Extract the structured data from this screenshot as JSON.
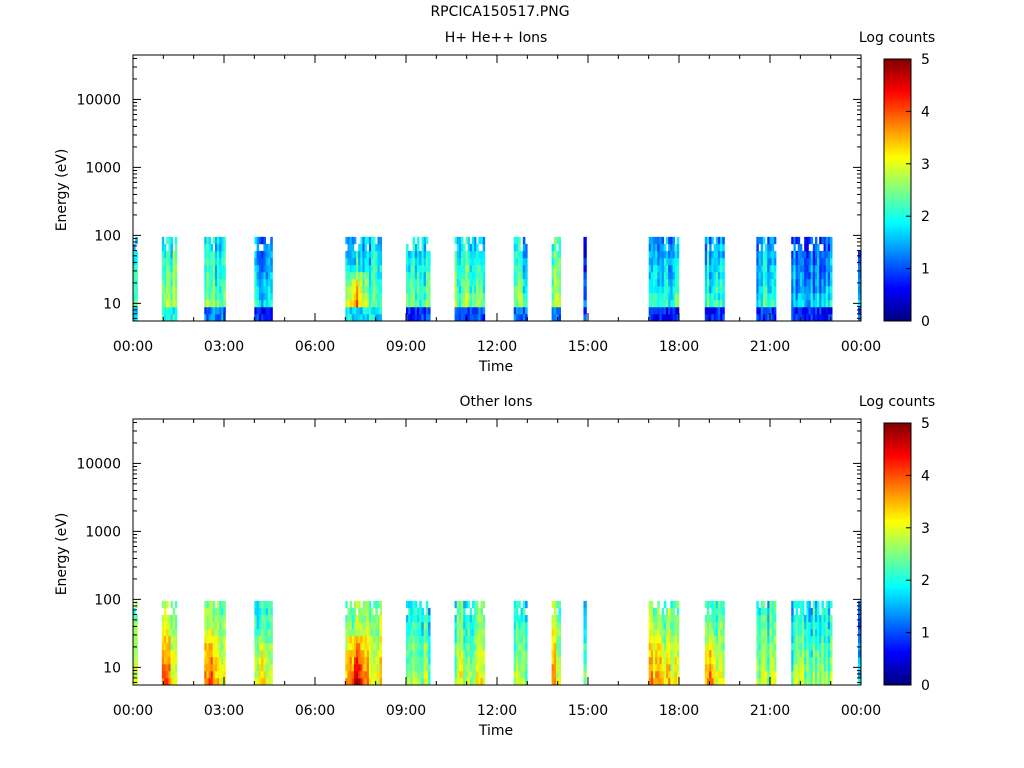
{
  "page": {
    "title": "RPCICA150517.PNG"
  },
  "colors": {
    "background": "#ffffff",
    "colormap": [
      "#00007f",
      "#0000ff",
      "#0080ff",
      "#00ffff",
      "#80ff80",
      "#ffff00",
      "#ff8000",
      "#ff0000",
      "#7f0000"
    ]
  },
  "chart_data": [
    {
      "type": "heatmap",
      "title": "H+ He++ Ions",
      "xlabel": "Time",
      "ylabel": "Energy (eV)",
      "x_tick_labels": [
        "00:00",
        "03:00",
        "06:00",
        "09:00",
        "12:00",
        "15:00",
        "18:00",
        "21:00",
        "00:00"
      ],
      "x_range_hours": [
        0,
        24
      ],
      "y_scale": "log",
      "ylim": [
        5.5,
        45000
      ],
      "y_tick_values": [
        10,
        100,
        1000,
        10000
      ],
      "y_tick_labels": [
        "10",
        "100",
        "1000",
        "10000"
      ],
      "colorbar": {
        "label": "Log counts",
        "range": [
          0,
          5
        ],
        "tick_labels": [
          "0",
          "1",
          "2",
          "3",
          "4",
          "5"
        ]
      },
      "data_energy_range_eV": [
        5.5,
        95
      ],
      "intervals": [
        {
          "start_h": 0.0,
          "end_h": 0.15,
          "mean_level": 2.3,
          "low_band_level": 1.5
        },
        {
          "start_h": 0.95,
          "end_h": 1.45,
          "mean_level": 2.8,
          "low_band_level": 2.0
        },
        {
          "start_h": 2.35,
          "end_h": 3.05,
          "mean_level": 2.6,
          "low_band_level": 1.2
        },
        {
          "start_h": 4.0,
          "end_h": 4.6,
          "mean_level": 2.1,
          "low_band_level": 0.8
        },
        {
          "start_h": 7.0,
          "end_h": 8.2,
          "mean_level": 2.4,
          "low_band_level": 1.8,
          "peak_level": 4.2
        },
        {
          "start_h": 9.0,
          "end_h": 9.8,
          "mean_level": 2.5,
          "low_band_level": 0.9
        },
        {
          "start_h": 10.6,
          "end_h": 11.6,
          "mean_level": 2.7,
          "low_band_level": 1.0
        },
        {
          "start_h": 12.55,
          "end_h": 13.0,
          "mean_level": 2.6,
          "low_band_level": 1.1
        },
        {
          "start_h": 13.8,
          "end_h": 14.1,
          "mean_level": 2.9,
          "low_band_level": 1.2
        },
        {
          "start_h": 14.85,
          "end_h": 14.95,
          "mean_level": 1.5,
          "low_band_level": 0.9
        },
        {
          "start_h": 17.0,
          "end_h": 18.0,
          "mean_level": 2.3,
          "low_band_level": 0.7
        },
        {
          "start_h": 18.85,
          "end_h": 19.5,
          "mean_level": 2.3,
          "low_band_level": 0.8
        },
        {
          "start_h": 20.55,
          "end_h": 21.2,
          "mean_level": 2.2,
          "low_band_level": 0.9
        },
        {
          "start_h": 21.7,
          "end_h": 23.05,
          "mean_level": 1.9,
          "low_band_level": 0.7
        },
        {
          "start_h": 23.9,
          "end_h": 24.0,
          "mean_level": 2.0,
          "low_band_level": 1.0
        }
      ]
    },
    {
      "type": "heatmap",
      "title": "Other Ions",
      "xlabel": "Time",
      "ylabel": "Energy (eV)",
      "x_tick_labels": [
        "00:00",
        "03:00",
        "06:00",
        "09:00",
        "12:00",
        "15:00",
        "18:00",
        "21:00",
        "00:00"
      ],
      "x_range_hours": [
        0,
        24
      ],
      "y_scale": "log",
      "ylim": [
        5.5,
        45000
      ],
      "y_tick_values": [
        10,
        100,
        1000,
        10000
      ],
      "y_tick_labels": [
        "10",
        "100",
        "1000",
        "10000"
      ],
      "colorbar": {
        "label": "Log counts",
        "range": [
          0,
          5
        ],
        "tick_labels": [
          "0",
          "1",
          "2",
          "3",
          "4",
          "5"
        ]
      },
      "data_energy_range_eV": [
        5.5,
        95
      ],
      "intervals": [
        {
          "start_h": 0.0,
          "end_h": 0.15,
          "mean_level": 3.0
        },
        {
          "start_h": 0.95,
          "end_h": 1.45,
          "mean_level": 3.4,
          "peak_level": 3.9
        },
        {
          "start_h": 2.35,
          "end_h": 3.05,
          "mean_level": 3.2,
          "peak_level": 3.8
        },
        {
          "start_h": 4.0,
          "end_h": 4.6,
          "mean_level": 2.8,
          "peak_level": 3.4
        },
        {
          "start_h": 7.0,
          "end_h": 8.2,
          "mean_level": 3.2,
          "peak_level": 4.5
        },
        {
          "start_h": 9.0,
          "end_h": 9.8,
          "mean_level": 2.7
        },
        {
          "start_h": 10.6,
          "end_h": 11.6,
          "mean_level": 2.9
        },
        {
          "start_h": 12.55,
          "end_h": 13.0,
          "mean_level": 2.8
        },
        {
          "start_h": 13.8,
          "end_h": 14.1,
          "mean_level": 3.3
        },
        {
          "start_h": 14.85,
          "end_h": 14.95,
          "mean_level": 2.5
        },
        {
          "start_h": 17.0,
          "end_h": 18.0,
          "mean_level": 3.2,
          "peak_level": 3.7
        },
        {
          "start_h": 18.85,
          "end_h": 19.5,
          "mean_level": 3.1,
          "peak_level": 3.9
        },
        {
          "start_h": 20.55,
          "end_h": 21.2,
          "mean_level": 2.8
        },
        {
          "start_h": 21.7,
          "end_h": 23.05,
          "mean_level": 2.6
        },
        {
          "start_h": 23.9,
          "end_h": 24.0,
          "mean_level": 2.2
        }
      ]
    }
  ]
}
